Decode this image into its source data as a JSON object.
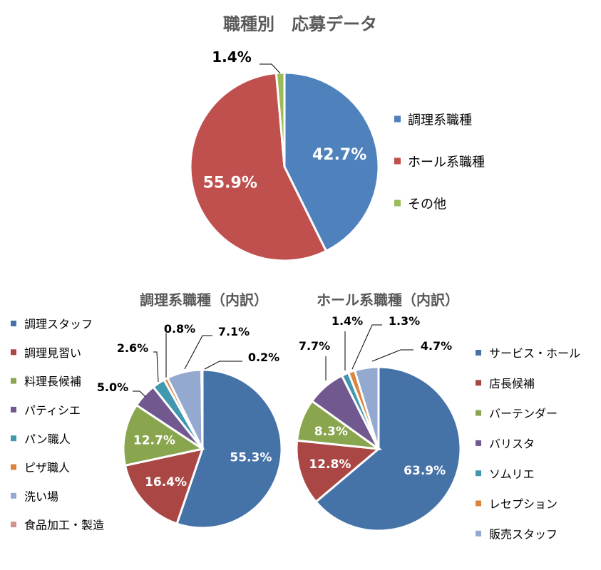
{
  "chart_data": [
    {
      "type": "pie",
      "title": "職種別　応募データ",
      "categories": [
        "調理系職種",
        "ホール系職種",
        "その他"
      ],
      "values": [
        42.7,
        55.9,
        1.4
      ],
      "labels": [
        "42.7%",
        "55.9%",
        "1.4%"
      ],
      "colors": [
        "#4F81BD",
        "#C0504D",
        "#9BBB59"
      ],
      "legend_position": "right"
    },
    {
      "type": "pie",
      "title": "調理系職種（内訳）",
      "categories": [
        "調理スタッフ",
        "調理見習い",
        "料理長候補",
        "パティシエ",
        "パン職人",
        "ピザ職人",
        "洗い場",
        "食品加工・製造"
      ],
      "values": [
        55.3,
        16.4,
        12.7,
        5.0,
        2.6,
        0.8,
        7.1,
        0.2
      ],
      "labels": [
        "55.3%",
        "16.4%",
        "12.7%",
        "5.0%",
        "2.6%",
        "0.8%",
        "7.1%",
        "0.2%"
      ],
      "colors": [
        "#4572A7",
        "#AA4643",
        "#89A54E",
        "#71588F",
        "#4198AF",
        "#DB843D",
        "#93A9CF",
        "#D19392"
      ],
      "legend_position": "left"
    },
    {
      "type": "pie",
      "title": "ホール系職種（内訳）",
      "categories": [
        "サービス・ホール",
        "店長候補",
        "バーテンダー",
        "バリスタ",
        "ソムリエ",
        "レセプション",
        "販売スタッフ"
      ],
      "values": [
        63.9,
        12.8,
        8.3,
        7.7,
        1.4,
        1.3,
        4.7
      ],
      "labels": [
        "63.9%",
        "12.8%",
        "8.3%",
        "7.7%",
        "1.4%",
        "1.3%",
        "4.7%"
      ],
      "colors": [
        "#4572A7",
        "#AA4643",
        "#89A54E",
        "#71588F",
        "#4198AF",
        "#DB843D",
        "#93A9CF"
      ],
      "legend_position": "right"
    }
  ]
}
